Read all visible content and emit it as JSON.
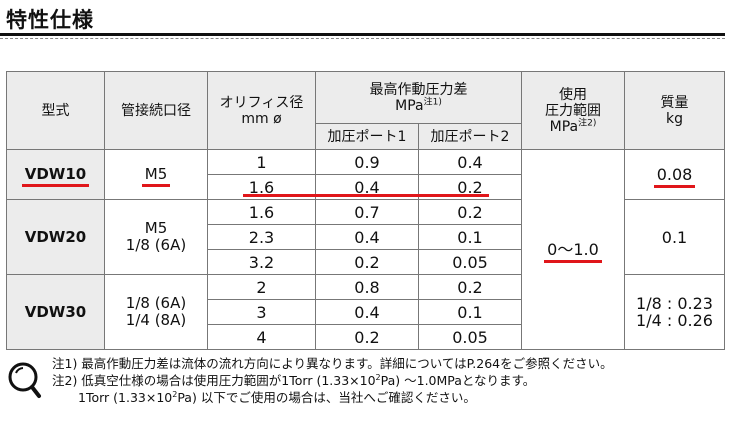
{
  "title": "特性仕様",
  "headers": {
    "model": "型式",
    "port": "管接続口径",
    "orifice_1": "オリフィス径",
    "orifice_2": "mm ø",
    "pressure_1": "最高作動圧力差",
    "pressure_2": "MPa",
    "pressure_note": "注1)",
    "pressure_sub1": "加圧ポート1",
    "pressure_sub2": "加圧ポート2",
    "range_1": "使用",
    "range_2": "圧力範囲",
    "range_3": "MPa",
    "range_note": "注2)",
    "mass_1": "質量",
    "mass_2": "kg"
  },
  "models": [
    {
      "name": "VDW10",
      "port": [
        "M5"
      ],
      "mass": [
        "0.08"
      ],
      "rows": [
        {
          "orifice": "1",
          "p1": "0.9",
          "p2": "0.4"
        },
        {
          "orifice": "1.6",
          "p1": "0.4",
          "p2": "0.2"
        }
      ]
    },
    {
      "name": "VDW20",
      "port": [
        "M5",
        "1/8 (6A)"
      ],
      "rows": [
        {
          "orifice": "1.6",
          "p1": "0.7",
          "p2": "0.2"
        },
        {
          "orifice": "2.3",
          "p1": "0.4",
          "p2": "0.1"
        },
        {
          "orifice": "3.2",
          "p1": "0.2",
          "p2": "0.05"
        }
      ]
    },
    {
      "name": "VDW30",
      "port": [
        "1/8 (6A)",
        "1/4 (8A)"
      ],
      "mass": [
        "1/8 : 0.23",
        "1/4 : 0.26"
      ],
      "rows": [
        {
          "orifice": "2",
          "p1": "0.8",
          "p2": "0.2"
        },
        {
          "orifice": "3",
          "p1": "0.4",
          "p2": "0.1"
        },
        {
          "orifice": "4",
          "p1": "0.2",
          "p2": "0.05"
        }
      ]
    }
  ],
  "range_value": "0〜1.0",
  "mass_vdw20": "0.1",
  "notes": {
    "n1": "注1) 最高作動圧力差は流体の流れ方向により異なります。詳細についてはP.264をご参照ください。",
    "n2_a": "注2) 低真空仕様の場合は使用圧力範囲が1Torr (1.33×10",
    "n2_sup1": "2",
    "n2_b": "Pa) 〜1.0MPaとなります。",
    "n3_a": "1Torr (1.33×10",
    "n3_sup": "2",
    "n3_b": "Pa) 以下でご使用の場合は、当社へご確認ください。"
  },
  "colors": {
    "highlight": "#e0161a",
    "header_bg": "#ececec"
  }
}
